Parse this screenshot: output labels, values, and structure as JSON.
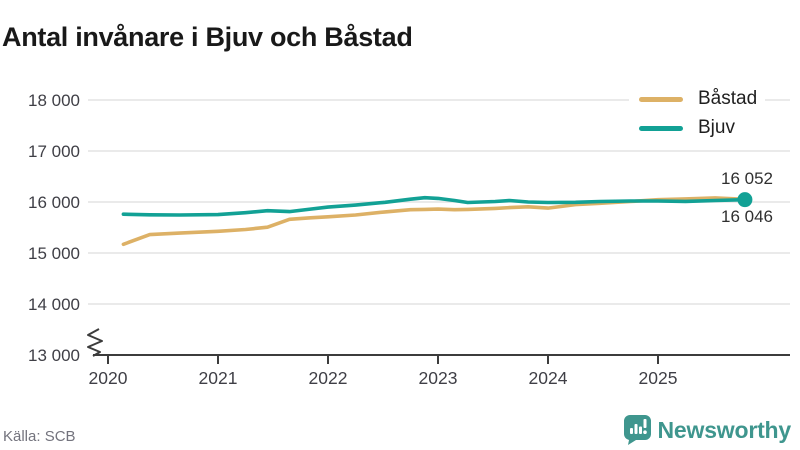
{
  "title": "Antal invånare i Bjuv och Båstad",
  "source": "Källa: SCB",
  "branding": {
    "name": "Newsworthy",
    "color": "#3f968e"
  },
  "legend": [
    {
      "label": "Båstad",
      "color": "#ddb166"
    },
    {
      "label": "Bjuv",
      "color": "#12a195"
    }
  ],
  "end_labels": [
    {
      "text": "16 052"
    },
    {
      "text": "16 046"
    }
  ],
  "colors": {
    "bastad": "#ddb166",
    "bjuv": "#12a195",
    "gridline": "#e4e4e4",
    "axis": "#3c3c3c",
    "tick_text": "#3f3f46"
  },
  "chart_data": {
    "type": "line",
    "title": "Antal invånare i Bjuv och Båstad",
    "xlabel": "",
    "ylabel": "",
    "x_unit": "decimal_year",
    "xlim": [
      2019.85,
      2026.2
    ],
    "ylim": [
      13000,
      18000
    ],
    "axis_break": true,
    "grid": "horizontal",
    "legend_position": "top-right",
    "x_tick_values": [
      2020,
      2021,
      2022,
      2023,
      2024,
      2025
    ],
    "x_tick_labels": [
      "2020",
      "2021",
      "2022",
      "2023",
      "2024",
      "2025"
    ],
    "y_tick_values": [
      13000,
      14000,
      15000,
      16000,
      17000,
      18000
    ],
    "y_tick_labels": [
      "13 000",
      "14 000",
      "15 000",
      "16 000",
      "17 000",
      "18 000"
    ],
    "series": [
      {
        "name": "Båstad",
        "color": "#ddb166",
        "end_label": "16 052",
        "end_value": 16052,
        "end_dot": false,
        "x": [
          2020.14,
          2020.38,
          2020.65,
          2021.0,
          2021.25,
          2021.45,
          2021.65,
          2021.84,
          2022.0,
          2022.25,
          2022.52,
          2022.75,
          2022.88,
          2023.0,
          2023.15,
          2023.27,
          2023.52,
          2023.65,
          2023.82,
          2024.0,
          2024.25,
          2024.47,
          2024.75,
          2025.0,
          2025.25,
          2025.52,
          2025.79
        ],
        "values": [
          15170,
          15360,
          15390,
          15425,
          15460,
          15505,
          15660,
          15690,
          15710,
          15745,
          15805,
          15850,
          15855,
          15860,
          15850,
          15855,
          15875,
          15890,
          15905,
          15880,
          15950,
          15975,
          16010,
          16045,
          16060,
          16080,
          16052
        ]
      },
      {
        "name": "Bjuv",
        "color": "#12a195",
        "end_label": "16 046",
        "end_value": 16046,
        "end_dot": true,
        "x": [
          2020.14,
          2020.38,
          2020.65,
          2021.0,
          2021.25,
          2021.45,
          2021.65,
          2021.84,
          2022.0,
          2022.25,
          2022.52,
          2022.75,
          2022.88,
          2023.0,
          2023.15,
          2023.27,
          2023.52,
          2023.65,
          2023.82,
          2024.0,
          2024.25,
          2024.47,
          2024.75,
          2025.0,
          2025.25,
          2025.52,
          2025.79
        ],
        "values": [
          15760,
          15750,
          15745,
          15752,
          15790,
          15830,
          15812,
          15860,
          15900,
          15940,
          15995,
          16055,
          16085,
          16070,
          16030,
          15990,
          16010,
          16030,
          16000,
          15990,
          15995,
          16010,
          16020,
          16020,
          16012,
          16030,
          16046
        ]
      }
    ]
  }
}
